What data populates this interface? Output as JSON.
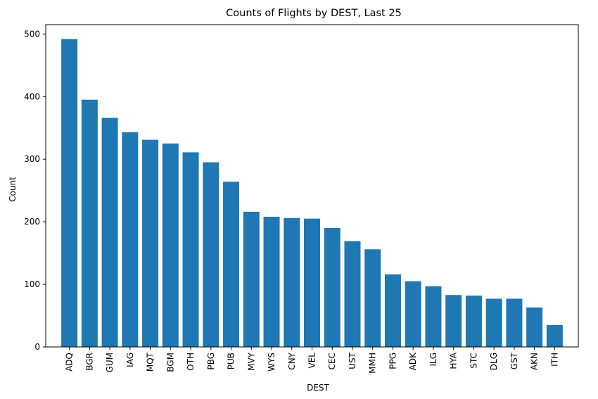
{
  "chart_data": {
    "type": "bar",
    "title": "Counts of Flights by DEST, Last 25",
    "xlabel": "DEST",
    "ylabel": "Count",
    "categories": [
      "ADQ",
      "BGR",
      "GUM",
      "IAG",
      "MQT",
      "BGM",
      "OTH",
      "PBG",
      "PUB",
      "MVY",
      "WYS",
      "CNY",
      "VEL",
      "CEC",
      "UST",
      "MMH",
      "PPG",
      "ADK",
      "ILG",
      "HYA",
      "STC",
      "DLG",
      "GST",
      "AKN",
      "ITH"
    ],
    "values": [
      492,
      395,
      366,
      343,
      331,
      325,
      311,
      295,
      264,
      216,
      208,
      206,
      205,
      190,
      169,
      156,
      116,
      105,
      97,
      83,
      82,
      77,
      77,
      63,
      35
    ],
    "ylim": [
      0,
      515
    ],
    "yticks": [
      0,
      100,
      200,
      300,
      400,
      500
    ],
    "bar_color": "#1f77b4",
    "grid": false,
    "legend": "none"
  }
}
